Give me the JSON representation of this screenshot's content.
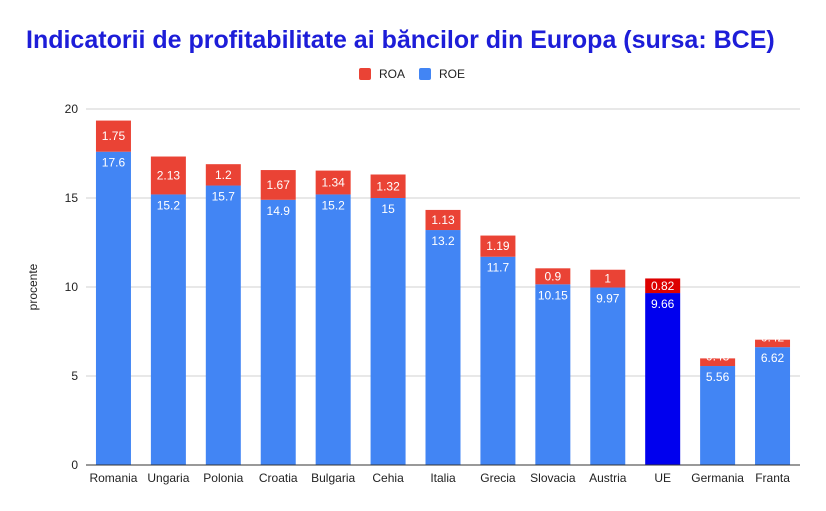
{
  "chart_data": {
    "type": "bar",
    "stacked": true,
    "title": "Indicatorii de profitabilitate ai băncilor din Europa (sursa: BCE)",
    "xlabel": "",
    "ylabel": "procente",
    "ylim": [
      0,
      20
    ],
    "yticks": [
      0,
      5,
      10,
      15,
      20
    ],
    "grid": true,
    "legend_position": "top-center",
    "categories": [
      "Romania",
      "Ungaria",
      "Polonia",
      "Croatia",
      "Bulgaria",
      "Cehia",
      "Italia",
      "Grecia",
      "Slovacia",
      "Austria",
      "UE",
      "Germania",
      "Franta"
    ],
    "series": [
      {
        "name": "ROE",
        "color": "#4285f4",
        "highlight_color": "#0000ee",
        "values": [
          17.6,
          15.2,
          15.7,
          14.9,
          15.2,
          15,
          13.2,
          11.7,
          10.15,
          9.97,
          9.66,
          5.56,
          6.62
        ],
        "labels": [
          "17.6",
          "15.2",
          "15.7",
          "14.9",
          "15.2",
          "15",
          "13.2",
          "11.7",
          "10.15",
          "9.97",
          "9.66",
          "5.56",
          "6.62"
        ]
      },
      {
        "name": "ROA",
        "color": "#ea4335",
        "highlight_color": "#dd0000",
        "values": [
          1.75,
          2.13,
          1.2,
          1.67,
          1.34,
          1.32,
          1.13,
          1.19,
          0.9,
          1,
          0.82,
          0.43,
          0.42
        ],
        "labels": [
          "1.75",
          "2.13",
          "1.2",
          "1.67",
          "1.34",
          "1.32",
          "1.13",
          "1.19",
          "0.9",
          "1",
          "0.82",
          "0.43",
          "0.42"
        ]
      }
    ],
    "highlight_category": "UE"
  }
}
